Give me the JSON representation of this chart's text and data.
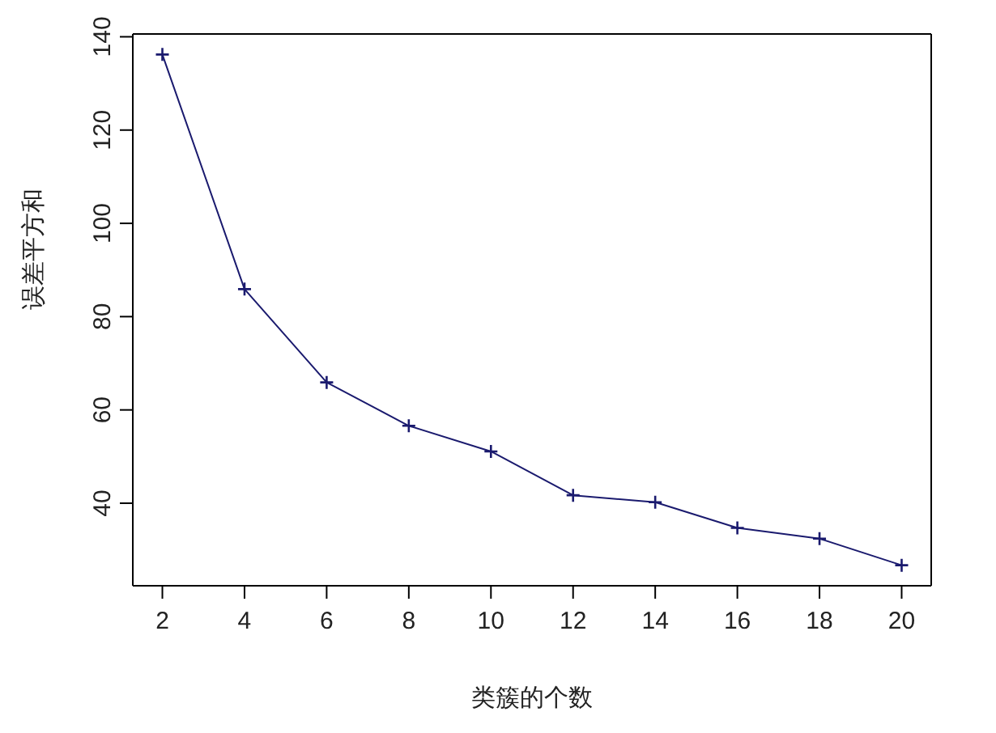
{
  "chart_data": {
    "type": "line",
    "xlabel": "类簇的个数",
    "ylabel": "误差平方和",
    "x": [
      2,
      4,
      6,
      8,
      10,
      12,
      14,
      16,
      18,
      20
    ],
    "series": [
      {
        "color": "#1a1a6e",
        "values": [
          136.2,
          85.9,
          65.9,
          56.6,
          51.1,
          41.7,
          40.2,
          34.7,
          32.4,
          26.7
        ]
      }
    ],
    "xlim": [
      1.28,
      20.72
    ],
    "xticks": [
      2,
      4,
      6,
      8,
      10,
      12,
      14,
      16,
      18,
      20
    ],
    "ylim": [
      22.3,
      140.6
    ],
    "yticks": [
      40,
      60,
      80,
      100,
      120,
      140
    ],
    "grid": false,
    "legend": false,
    "marker": "cross",
    "line_style": "solid"
  }
}
